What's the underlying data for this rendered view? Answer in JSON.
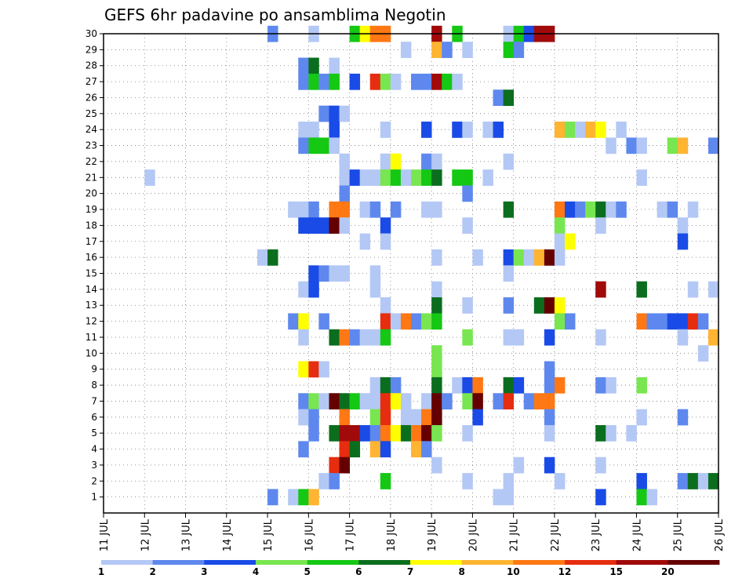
{
  "chart_data": {
    "type": "heatmap",
    "title": "GEFS 6hr padavine po ansamblima Negotin",
    "xlabel": "",
    "ylabel": "",
    "x_ticks": [
      "11 JUL",
      "12 JUL",
      "13 JUL",
      "14 JUL",
      "15 JUL",
      "16 JUL",
      "17 JUL",
      "18 JUL",
      "19 JUL",
      "20 JUL",
      "21 JUL",
      "22 JUL",
      "23 JUL",
      "24 JUL",
      "25 JUL",
      "26 JUL"
    ],
    "y_ticks": [
      "1",
      "2",
      "3",
      "4",
      "5",
      "6",
      "7",
      "8",
      "9",
      "10",
      "11",
      "12",
      "13",
      "14",
      "15",
      "16",
      "17",
      "18",
      "19",
      "20",
      "21",
      "22",
      "23",
      "24",
      "25",
      "26",
      "27",
      "28",
      "29",
      "30"
    ],
    "x_range_days": [
      11,
      26
    ],
    "y_range": [
      0,
      30
    ],
    "grid": true,
    "legend": {
      "placement": "bottom",
      "labels": [
        "1",
        "2",
        "3",
        "4",
        "5",
        "6",
        "7",
        "8",
        "10",
        "12",
        "15",
        "20"
      ],
      "colors": [
        "#b4c8f5",
        "#5e88ee",
        "#1a4be6",
        "#78e650",
        "#14c814",
        "#0a6e1e",
        "#ffff00",
        "#ffb432",
        "#ff7814",
        "#e62d0f",
        "#a00a0a",
        "#640000"
      ]
    },
    "cells": [
      [
        15,
        30,
        2
      ],
      [
        16,
        30,
        1
      ],
      [
        17,
        30,
        5
      ],
      [
        17.25,
        30,
        7
      ],
      [
        17.5,
        30,
        9
      ],
      [
        17.75,
        30,
        9
      ],
      [
        19,
        30,
        11
      ],
      [
        19.5,
        30,
        5
      ],
      [
        20.75,
        30,
        1
      ],
      [
        21,
        30,
        5
      ],
      [
        21.25,
        30,
        3
      ],
      [
        21.5,
        30,
        11
      ],
      [
        21.75,
        30,
        11
      ],
      [
        18.25,
        29,
        1
      ],
      [
        19,
        29,
        8
      ],
      [
        19.25,
        29,
        2
      ],
      [
        19.75,
        29,
        1
      ],
      [
        20.75,
        29,
        5
      ],
      [
        21,
        29,
        2
      ],
      [
        15.75,
        28,
        2
      ],
      [
        16,
        28,
        6
      ],
      [
        16.5,
        28,
        1
      ],
      [
        15.75,
        27,
        2
      ],
      [
        16,
        27,
        5
      ],
      [
        16.25,
        27,
        2
      ],
      [
        16.5,
        27,
        5
      ],
      [
        17,
        27,
        3
      ],
      [
        17.5,
        27,
        10
      ],
      [
        17.75,
        27,
        4
      ],
      [
        18,
        27,
        1
      ],
      [
        18.5,
        27,
        2
      ],
      [
        18.75,
        27,
        2
      ],
      [
        19,
        27,
        11
      ],
      [
        19.25,
        27,
        5
      ],
      [
        19.5,
        27,
        1
      ],
      [
        20.5,
        26,
        2
      ],
      [
        20.75,
        26,
        6
      ],
      [
        16.25,
        25,
        2
      ],
      [
        16.5,
        25,
        3
      ],
      [
        16.75,
        25,
        1
      ],
      [
        15.75,
        24,
        1
      ],
      [
        16,
        24,
        1
      ],
      [
        16.5,
        24,
        3
      ],
      [
        17.75,
        24,
        1
      ],
      [
        18.75,
        24,
        3
      ],
      [
        19.5,
        24,
        3
      ],
      [
        19.75,
        24,
        1
      ],
      [
        20.25,
        24,
        1
      ],
      [
        20.5,
        24,
        3
      ],
      [
        22,
        24,
        8
      ],
      [
        22.25,
        24,
        4
      ],
      [
        22.5,
        24,
        1
      ],
      [
        22.75,
        24,
        8
      ],
      [
        23,
        24,
        7
      ],
      [
        23.5,
        24,
        1
      ],
      [
        15.75,
        23,
        2
      ],
      [
        16,
        23,
        5
      ],
      [
        16.25,
        23,
        5
      ],
      [
        16.5,
        23,
        1
      ],
      [
        23.25,
        23,
        1
      ],
      [
        23.75,
        23,
        2
      ],
      [
        24,
        23,
        1
      ],
      [
        24.75,
        23,
        4
      ],
      [
        25,
        23,
        8
      ],
      [
        25.75,
        23,
        2
      ],
      [
        16.75,
        22,
        1
      ],
      [
        17.75,
        22,
        1
      ],
      [
        18,
        22,
        7
      ],
      [
        18.75,
        22,
        2
      ],
      [
        19,
        22,
        1
      ],
      [
        20.75,
        22,
        1
      ],
      [
        12,
        21,
        1
      ],
      [
        16.75,
        21,
        1
      ],
      [
        17,
        21,
        3
      ],
      [
        17.25,
        21,
        1
      ],
      [
        17.5,
        21,
        1
      ],
      [
        17.75,
        21,
        4
      ],
      [
        18,
        21,
        5
      ],
      [
        18.25,
        21,
        1
      ],
      [
        18.5,
        21,
        4
      ],
      [
        18.75,
        21,
        5
      ],
      [
        19,
        21,
        6
      ],
      [
        19.5,
        21,
        5
      ],
      [
        19.75,
        21,
        5
      ],
      [
        20.25,
        21,
        1
      ],
      [
        24,
        21,
        1
      ],
      [
        16.75,
        20,
        2
      ],
      [
        19.75,
        20,
        2
      ],
      [
        15.5,
        19,
        1
      ],
      [
        15.75,
        19,
        1
      ],
      [
        16,
        19,
        2
      ],
      [
        16.5,
        19,
        9
      ],
      [
        16.75,
        19,
        9
      ],
      [
        17.25,
        19,
        1
      ],
      [
        17.5,
        19,
        2
      ],
      [
        18,
        19,
        2
      ],
      [
        18.75,
        19,
        1
      ],
      [
        19,
        19,
        1
      ],
      [
        20.75,
        19,
        6
      ],
      [
        22,
        19,
        9
      ],
      [
        22.25,
        19,
        3
      ],
      [
        22.5,
        19,
        2
      ],
      [
        22.75,
        19,
        4
      ],
      [
        23,
        19,
        6
      ],
      [
        23.25,
        19,
        1
      ],
      [
        23.5,
        19,
        2
      ],
      [
        24.5,
        19,
        1
      ],
      [
        24.75,
        19,
        2
      ],
      [
        25.25,
        19,
        1
      ],
      [
        15.75,
        18,
        3
      ],
      [
        16,
        18,
        3
      ],
      [
        16.25,
        18,
        3
      ],
      [
        16.5,
        18,
        12
      ],
      [
        16.75,
        18,
        1
      ],
      [
        17.75,
        18,
        3
      ],
      [
        19.75,
        18,
        1
      ],
      [
        22,
        18,
        4
      ],
      [
        23,
        18,
        1
      ],
      [
        25,
        18,
        1
      ],
      [
        17.25,
        17,
        1
      ],
      [
        17.75,
        17,
        1
      ],
      [
        22,
        17,
        1
      ],
      [
        22.25,
        17,
        7
      ],
      [
        25,
        17,
        3
      ],
      [
        14.75,
        16,
        1
      ],
      [
        15,
        16,
        6
      ],
      [
        19,
        16,
        1
      ],
      [
        20,
        16,
        1
      ],
      [
        20.75,
        16,
        3
      ],
      [
        21,
        16,
        4
      ],
      [
        21.25,
        16,
        1
      ],
      [
        21.5,
        16,
        8
      ],
      [
        21.75,
        16,
        12
      ],
      [
        22,
        16,
        1
      ],
      [
        16,
        15,
        3
      ],
      [
        16.25,
        15,
        2
      ],
      [
        16.5,
        15,
        1
      ],
      [
        16.75,
        15,
        1
      ],
      [
        17.5,
        15,
        1
      ],
      [
        20.75,
        15,
        1
      ],
      [
        15.75,
        14,
        1
      ],
      [
        16,
        14,
        3
      ],
      [
        17.5,
        14,
        1
      ],
      [
        19,
        14,
        1
      ],
      [
        23,
        14,
        11
      ],
      [
        24,
        14,
        6
      ],
      [
        25.25,
        14,
        1
      ],
      [
        25.75,
        14,
        1
      ],
      [
        17.75,
        13,
        1
      ],
      [
        19,
        13,
        6
      ],
      [
        19.75,
        13,
        1
      ],
      [
        20.75,
        13,
        2
      ],
      [
        21.5,
        13,
        6
      ],
      [
        21.75,
        13,
        12
      ],
      [
        22,
        13,
        7
      ],
      [
        15.5,
        12,
        2
      ],
      [
        15.75,
        12,
        7
      ],
      [
        16.25,
        12,
        2
      ],
      [
        17.75,
        12,
        10
      ],
      [
        18,
        12,
        1
      ],
      [
        18.25,
        12,
        9
      ],
      [
        18.5,
        12,
        2
      ],
      [
        18.75,
        12,
        4
      ],
      [
        19,
        12,
        5
      ],
      [
        22,
        12,
        4
      ],
      [
        22.25,
        12,
        2
      ],
      [
        24,
        12,
        9
      ],
      [
        24.25,
        12,
        2
      ],
      [
        24.5,
        12,
        2
      ],
      [
        24.75,
        12,
        3
      ],
      [
        25,
        12,
        3
      ],
      [
        25.25,
        12,
        10
      ],
      [
        25.5,
        12,
        2
      ],
      [
        15.75,
        11,
        1
      ],
      [
        16.5,
        11,
        6
      ],
      [
        16.75,
        11,
        9
      ],
      [
        17,
        11,
        2
      ],
      [
        17.25,
        11,
        1
      ],
      [
        17.5,
        11,
        1
      ],
      [
        17.75,
        11,
        5
      ],
      [
        19.75,
        11,
        4
      ],
      [
        20.75,
        11,
        1
      ],
      [
        21,
        11,
        1
      ],
      [
        21.75,
        11,
        3
      ],
      [
        23,
        11,
        1
      ],
      [
        25,
        11,
        1
      ],
      [
        25.75,
        11,
        8
      ],
      [
        19,
        10,
        4
      ],
      [
        25.5,
        10,
        1
      ],
      [
        15.75,
        9,
        7
      ],
      [
        16,
        9,
        10
      ],
      [
        16.25,
        9,
        1
      ],
      [
        19,
        9,
        4
      ],
      [
        21.75,
        9,
        2
      ],
      [
        17.5,
        8,
        1
      ],
      [
        17.75,
        8,
        6
      ],
      [
        18,
        8,
        2
      ],
      [
        19,
        8,
        6
      ],
      [
        19.5,
        8,
        1
      ],
      [
        19.75,
        8,
        3
      ],
      [
        20,
        8,
        9
      ],
      [
        20.75,
        8,
        6
      ],
      [
        21,
        8,
        3
      ],
      [
        21.75,
        8,
        2
      ],
      [
        22,
        8,
        9
      ],
      [
        23,
        8,
        2
      ],
      [
        23.25,
        8,
        1
      ],
      [
        24,
        8,
        4
      ],
      [
        15.75,
        7,
        2
      ],
      [
        16,
        7,
        4
      ],
      [
        16.25,
        7,
        1
      ],
      [
        16.5,
        7,
        12
      ],
      [
        16.75,
        7,
        6
      ],
      [
        17,
        7,
        5
      ],
      [
        17.25,
        7,
        1
      ],
      [
        17.5,
        7,
        1
      ],
      [
        17.75,
        7,
        10
      ],
      [
        18,
        7,
        7
      ],
      [
        18.25,
        7,
        1
      ],
      [
        18.75,
        7,
        1
      ],
      [
        19,
        7,
        12
      ],
      [
        19.25,
        7,
        2
      ],
      [
        19.75,
        7,
        4
      ],
      [
        20,
        7,
        12
      ],
      [
        20.5,
        7,
        2
      ],
      [
        20.75,
        7,
        10
      ],
      [
        21.25,
        7,
        2
      ],
      [
        21.5,
        7,
        9
      ],
      [
        21.75,
        7,
        9
      ],
      [
        15.75,
        6,
        1
      ],
      [
        16,
        6,
        2
      ],
      [
        16.75,
        6,
        9
      ],
      [
        17.5,
        6,
        4
      ],
      [
        17.75,
        6,
        10
      ],
      [
        18.25,
        6,
        1
      ],
      [
        18.5,
        6,
        1
      ],
      [
        18.75,
        6,
        9
      ],
      [
        19,
        6,
        12
      ],
      [
        20,
        6,
        3
      ],
      [
        21.75,
        6,
        2
      ],
      [
        24,
        6,
        1
      ],
      [
        25,
        6,
        2
      ],
      [
        16,
        5,
        2
      ],
      [
        16.5,
        5,
        6
      ],
      [
        16.75,
        5,
        11
      ],
      [
        17,
        5,
        11
      ],
      [
        17.25,
        5,
        3
      ],
      [
        17.5,
        5,
        2
      ],
      [
        17.75,
        5,
        9
      ],
      [
        18,
        5,
        7
      ],
      [
        18.25,
        5,
        6
      ],
      [
        18.5,
        5,
        9
      ],
      [
        18.75,
        5,
        12
      ],
      [
        19,
        5,
        4
      ],
      [
        19.75,
        5,
        1
      ],
      [
        21.75,
        5,
        1
      ],
      [
        23,
        5,
        6
      ],
      [
        23.25,
        5,
        1
      ],
      [
        23.75,
        5,
        1
      ],
      [
        15.75,
        4,
        2
      ],
      [
        16.75,
        4,
        10
      ],
      [
        17,
        4,
        6
      ],
      [
        17.5,
        4,
        8
      ],
      [
        17.75,
        4,
        3
      ],
      [
        18.5,
        4,
        8
      ],
      [
        18.75,
        4,
        2
      ],
      [
        16.5,
        3,
        10
      ],
      [
        16.75,
        3,
        12
      ],
      [
        19,
        3,
        1
      ],
      [
        21,
        3,
        1
      ],
      [
        21.75,
        3,
        3
      ],
      [
        23,
        3,
        1
      ],
      [
        16.25,
        2,
        1
      ],
      [
        16.5,
        2,
        2
      ],
      [
        17.75,
        2,
        5
      ],
      [
        19.75,
        2,
        1
      ],
      [
        20.75,
        2,
        1
      ],
      [
        22,
        2,
        1
      ],
      [
        24,
        2,
        3
      ],
      [
        25,
        2,
        2
      ],
      [
        25.25,
        2,
        6
      ],
      [
        25.5,
        2,
        1
      ],
      [
        25.75,
        2,
        6
      ],
      [
        15,
        1,
        2
      ],
      [
        15.5,
        1,
        1
      ],
      [
        15.75,
        1,
        5
      ],
      [
        16,
        1,
        8
      ],
      [
        20.5,
        1,
        1
      ],
      [
        20.75,
        1,
        1
      ],
      [
        23,
        1,
        3
      ],
      [
        24,
        1,
        5
      ],
      [
        24.25,
        1,
        1
      ]
    ]
  }
}
